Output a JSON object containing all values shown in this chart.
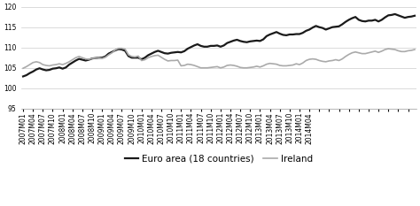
{
  "title": "",
  "ylim": [
    95,
    120
  ],
  "yticks": [
    95,
    100,
    105,
    110,
    115,
    120
  ],
  "xlabel": "",
  "ylabel": "",
  "legend_entries": [
    "Euro area (18 countries)",
    "Ireland"
  ],
  "euro_color": "#1a1a1a",
  "ireland_color": "#aaaaaa",
  "euro_linewidth": 1.6,
  "ireland_linewidth": 1.2,
  "background_color": "#ffffff",
  "grid_color": "#cccccc",
  "tick_label_fontsize": 5.5,
  "legend_fontsize": 7.5,
  "euro_data": [
    102.9,
    103.2,
    103.7,
    104.1,
    104.6,
    104.9,
    104.6,
    104.4,
    104.5,
    104.8,
    104.9,
    105.1,
    104.8,
    105.1,
    105.8,
    106.3,
    106.8,
    107.2,
    107.0,
    106.8,
    107.0,
    107.3,
    107.4,
    107.5,
    107.5,
    107.8,
    108.5,
    108.9,
    109.3,
    109.6,
    109.5,
    109.2,
    107.9,
    107.5,
    107.5,
    107.5,
    107.1,
    107.5,
    108.1,
    108.5,
    108.9,
    109.2,
    108.9,
    108.6,
    108.5,
    108.7,
    108.8,
    108.9,
    108.8,
    109.1,
    109.7,
    110.1,
    110.5,
    110.8,
    110.4,
    110.2,
    110.2,
    110.4,
    110.4,
    110.5,
    110.2,
    110.5,
    111.1,
    111.4,
    111.7,
    111.9,
    111.6,
    111.4,
    111.3,
    111.5,
    111.6,
    111.7,
    111.6,
    112.0,
    112.8,
    113.2,
    113.5,
    113.8,
    113.4,
    113.1,
    113.0,
    113.2,
    113.2,
    113.3,
    113.3,
    113.6,
    114.1,
    114.4,
    114.9,
    115.3,
    115.0,
    114.8,
    114.4,
    114.7,
    115.0,
    115.1,
    115.2,
    115.7,
    116.3,
    116.8,
    117.2,
    117.5,
    116.8,
    116.5,
    116.4,
    116.6,
    116.6,
    116.8,
    116.4,
    116.8,
    117.4,
    117.9,
    118.0,
    118.2,
    117.9,
    117.6,
    117.3,
    117.5,
    117.6,
    117.8
  ],
  "ireland_data": [
    104.9,
    105.3,
    105.8,
    106.3,
    106.5,
    106.3,
    105.8,
    105.6,
    105.5,
    105.7,
    105.8,
    106.0,
    105.8,
    106.1,
    106.5,
    107.0,
    107.5,
    107.8,
    107.5,
    107.2,
    107.1,
    107.3,
    107.4,
    107.5,
    107.3,
    107.6,
    108.2,
    108.7,
    109.4,
    109.8,
    109.8,
    109.6,
    108.2,
    107.8,
    107.7,
    107.9,
    106.8,
    107.0,
    107.5,
    107.8,
    108.0,
    108.1,
    107.6,
    107.1,
    106.7,
    106.8,
    106.8,
    106.9,
    105.5,
    105.6,
    105.9,
    105.8,
    105.6,
    105.3,
    105.0,
    105.0,
    105.0,
    105.1,
    105.2,
    105.3,
    105.0,
    105.2,
    105.6,
    105.7,
    105.6,
    105.4,
    105.1,
    105.0,
    105.0,
    105.1,
    105.2,
    105.4,
    105.2,
    105.5,
    105.9,
    106.1,
    106.0,
    105.9,
    105.6,
    105.5,
    105.5,
    105.6,
    105.7,
    106.0,
    105.8,
    106.2,
    106.8,
    107.1,
    107.2,
    107.1,
    106.8,
    106.6,
    106.5,
    106.7,
    106.8,
    107.0,
    106.8,
    107.2,
    107.8,
    108.3,
    108.7,
    108.9,
    108.7,
    108.5,
    108.5,
    108.7,
    108.9,
    109.1,
    108.8,
    109.1,
    109.5,
    109.7,
    109.6,
    109.5,
    109.2,
    109.0,
    109.0,
    109.2,
    109.3,
    109.5
  ],
  "x_tick_labels": [
    "2007M01",
    "2007M04",
    "2007M07",
    "2007M10",
    "2008M01",
    "2008M04",
    "2008M07",
    "2008M10",
    "2009M01",
    "2009M04",
    "2009M07",
    "2009M10",
    "2010M01",
    "2010M04",
    "2010M07",
    "2010M10",
    "2011M01",
    "2011M04",
    "2011M07",
    "2011M10",
    "2012M01",
    "2012M04",
    "2012M07",
    "2012M10",
    "2013M01",
    "2013M04",
    "2013M07",
    "2013M10",
    "2014M01",
    "2014M04"
  ]
}
